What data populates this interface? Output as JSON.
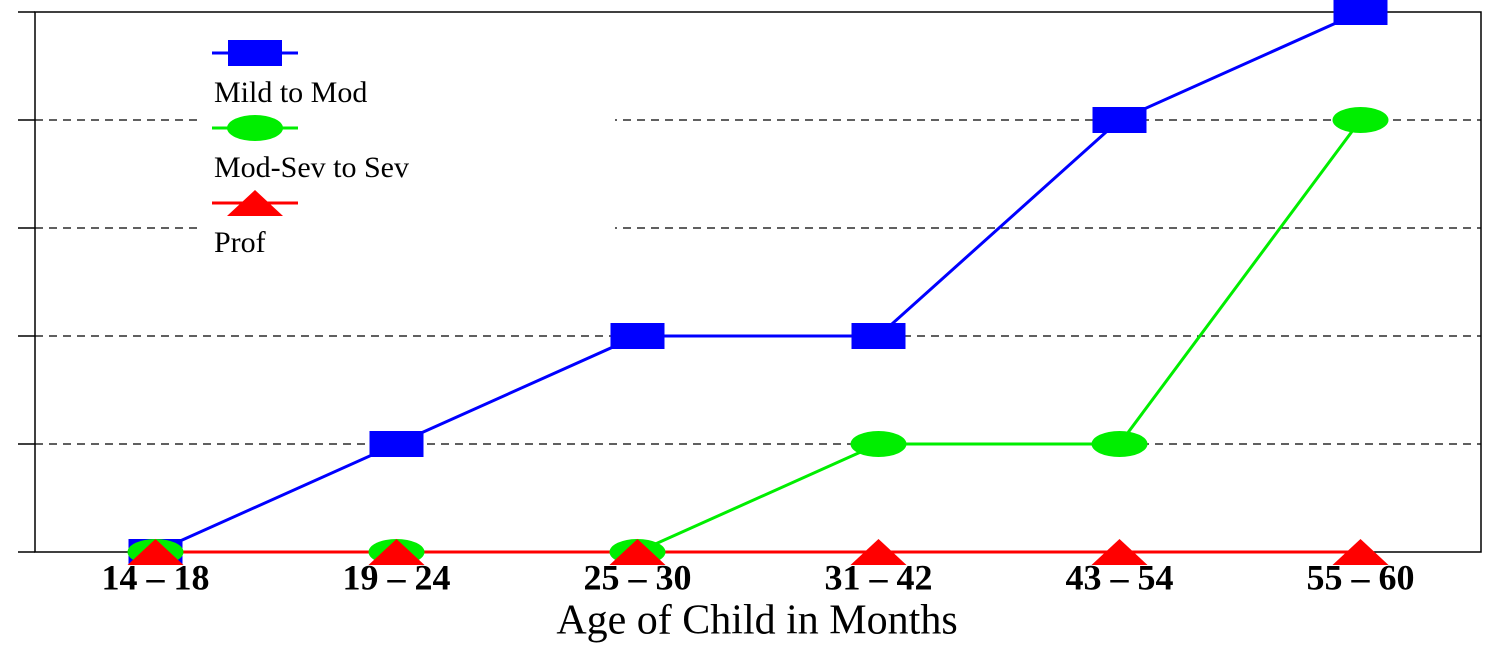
{
  "chart_data": {
    "type": "line",
    "x_label": "Age of Child in Months",
    "categories": [
      "14 – 18",
      "19 – 24",
      "25 – 30",
      "31 – 42",
      "43 – 54",
      "55 – 60"
    ],
    "series": [
      {
        "name": "Mild to Mod",
        "color": "#0000ff",
        "marker": "square",
        "values": [
          0,
          1,
          2,
          2,
          4,
          5
        ]
      },
      {
        "name": "Mod-Sev to Sev",
        "color": "#00ee00",
        "marker": "circle",
        "values": [
          0,
          0,
          0,
          1,
          1,
          4
        ]
      },
      {
        "name": "Prof",
        "color": "#ff0000",
        "marker": "triangle",
        "values": [
          0,
          0,
          0,
          0,
          0,
          0
        ]
      }
    ],
    "ylim": [
      0,
      5
    ],
    "yticks": [
      0,
      1,
      2,
      3,
      4,
      5
    ],
    "grid": true,
    "legend": "upper left"
  }
}
